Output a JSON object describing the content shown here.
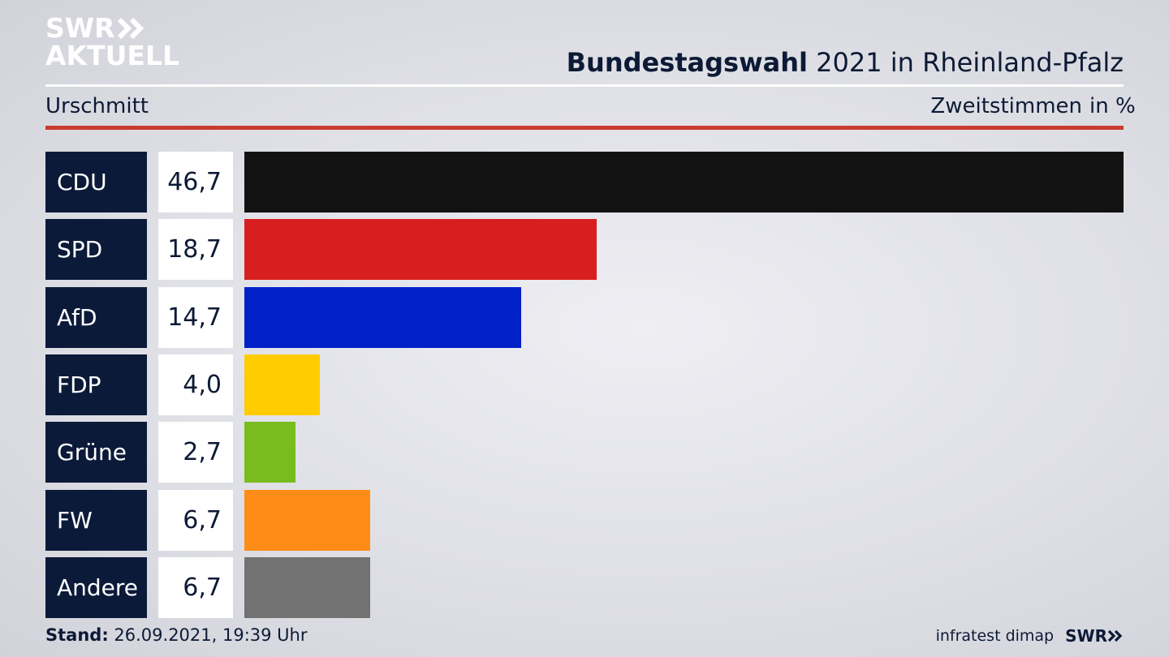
{
  "logo": {
    "line1": "SWR",
    "line2": "AKTUELL"
  },
  "header": {
    "title_bold": "Bundestagswahl",
    "title_rest": " 2021 in Rheinland-Pfalz",
    "region": "Urschmitt",
    "vote_type": "Zweitstimmen",
    "unit": "in %"
  },
  "footer": {
    "stand_label": "Stand:",
    "stand_value": " 26.09.2021, 19:39 Uhr",
    "source": "infratest dimap",
    "brand": "SWR"
  },
  "colors": {
    "accent_red_rule": "#cc3b2e",
    "party_box": "#0c1a3a"
  },
  "chart_data": {
    "type": "bar",
    "orientation": "horizontal",
    "categories": [
      "CDU",
      "SPD",
      "AfD",
      "FDP",
      "Grüne",
      "FW",
      "Andere"
    ],
    "values": [
      46.7,
      18.7,
      14.7,
      4.0,
      2.7,
      6.7,
      6.7
    ],
    "labels": [
      "46,7",
      "18,7",
      "14,7",
      "4,0",
      "2,7",
      "6,7",
      "6,7"
    ],
    "colors": [
      "#121212",
      "#d81f1f",
      "#0020c8",
      "#ffcc00",
      "#79bc1e",
      "#ff8c17",
      "#727272"
    ],
    "xlim": [
      0,
      46.7
    ]
  }
}
